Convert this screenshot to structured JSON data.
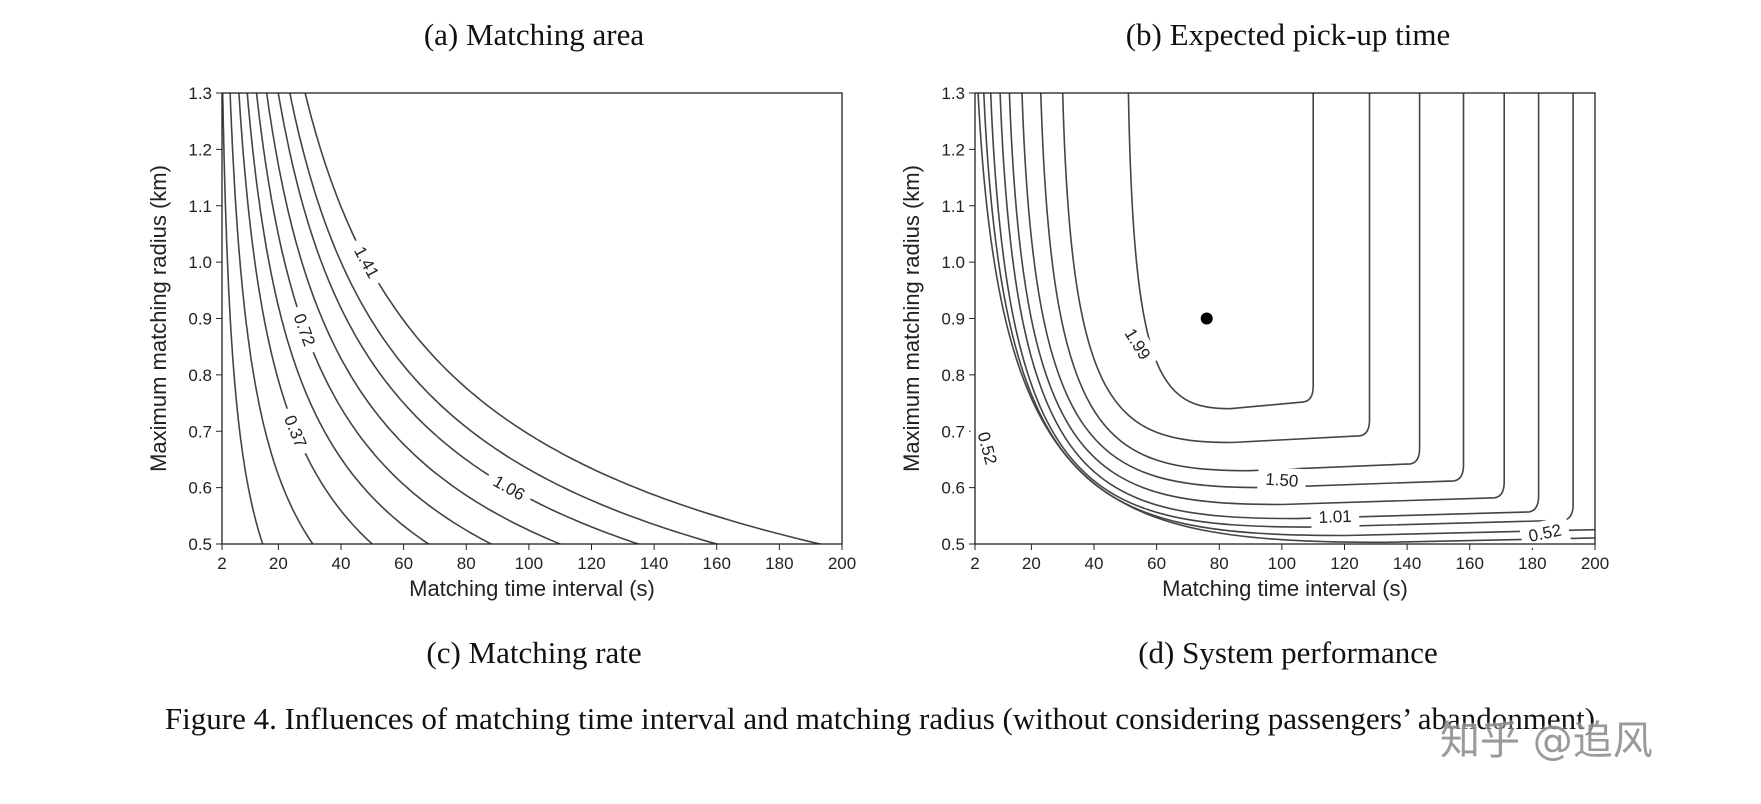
{
  "captions": {
    "a": "(a) Matching area",
    "b": "(b) Expected pick-up time",
    "c": "(c) Matching rate",
    "d": "(d) System performance"
  },
  "figure_caption": "Figure 4. Influences of matching time interval and matching radius (without considering passengers’ abandonment)",
  "watermark": "知乎 @追风",
  "chart_data": [
    {
      "type": "contour",
      "xlabel": "Matching time interval (s)",
      "ylabel": "Maximum matching radius (km)",
      "xlim": [
        2,
        200
      ],
      "ylim": [
        0.5,
        1.3
      ],
      "xticks": [
        2,
        20,
        40,
        60,
        80,
        100,
        120,
        140,
        160,
        180,
        200
      ],
      "yticks": [
        0.5,
        0.6,
        0.7,
        0.8,
        0.9,
        {
          "value": 1.0,
          "label": "1.0"
        },
        1.1,
        1.2,
        1.3
      ],
      "levels": [
        0.37,
        0.72,
        1.06,
        1.41
      ],
      "color": "#444444"
    },
    {
      "type": "contour",
      "xlabel": "Matching time interval (s)",
      "ylabel": "Maximum matching radius (km)",
      "xlim": [
        2,
        200
      ],
      "ylim": [
        0.5,
        1.3
      ],
      "xticks": [
        2,
        20,
        40,
        60,
        80,
        100,
        120,
        140,
        160,
        180,
        200
      ],
      "yticks": [
        0.5,
        0.6,
        0.7,
        0.8,
        0.9,
        {
          "value": 1.0,
          "label": "1.0"
        },
        1.1,
        1.2,
        1.3
      ],
      "levels": [
        0.52,
        1.01,
        {
          "value": 1.5,
          "label": "1.50"
        },
        1.99
      ],
      "color": "#444444",
      "points": [
        {
          "x": 76,
          "y": 0.9
        }
      ]
    }
  ]
}
